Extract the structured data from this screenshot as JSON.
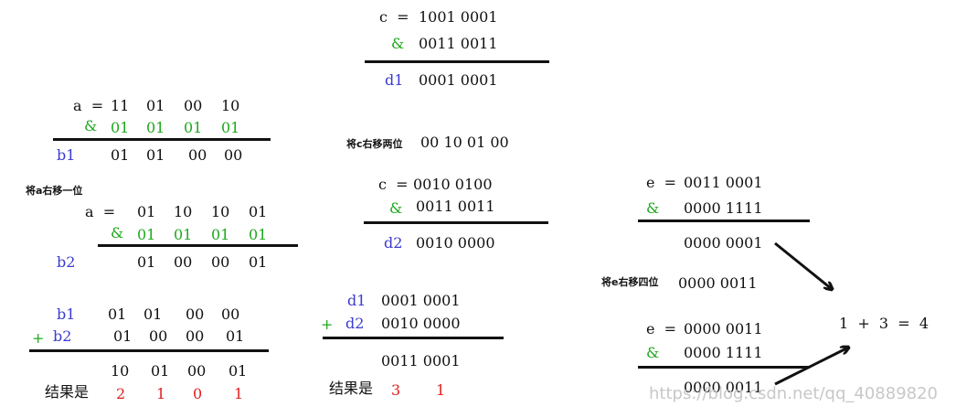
{
  "block_c1": {
    "c_label": "c  =",
    "c_value": "1001 0001",
    "op": "&",
    "mask": "0011 0011",
    "d1_label": "d1",
    "d1_value": "0001 0001"
  },
  "block_a1": {
    "a_label": "a  =",
    "a_bits": [
      "11",
      "01",
      "00",
      "10"
    ],
    "op": "&",
    "mask_bits": [
      "01",
      "01",
      "01",
      "01"
    ],
    "b1_label": "b1",
    "b1_bits": [
      "01",
      "01",
      "00",
      "00"
    ]
  },
  "note_shift_c": "将c右移两位",
  "shift_c_value": "00 10 01 00",
  "note_shift_a": "将a右移一位",
  "block_a2": {
    "a_label": "a  =",
    "a_bits": [
      "01",
      "10",
      "10",
      "01"
    ],
    "op": "&",
    "mask_bits": [
      "01",
      "01",
      "01",
      "01"
    ],
    "b2_label": "b2",
    "b2_bits": [
      "01",
      "00",
      "00",
      "01"
    ]
  },
  "block_c2": {
    "c_label": "c  =",
    "c_value": "0010 0100",
    "op": "&",
    "mask": "0011 0011",
    "d2_label": "d2",
    "d2_value": "0010 0000"
  },
  "block_e1": {
    "e_label": "e  =",
    "e_value": "0011 0001",
    "op": "&",
    "mask": "0000 1111",
    "result": "0000 0001"
  },
  "note_shift_e": "将e右移四位",
  "shift_e_value": "0000 0011",
  "block_e2": {
    "e_label": "e  =",
    "e_value": "0000 0011",
    "op": "&",
    "mask": "0000 1111",
    "result": "0000 0011"
  },
  "final_sum": "1  +  3  =  4",
  "block_sum_b": {
    "b1_label": "b1",
    "b1_bits": [
      "01",
      "01",
      "00",
      "00"
    ],
    "op": "+",
    "b2_label": "b2",
    "b2_bits": [
      "01",
      "00",
      "00",
      "01"
    ],
    "sum_bits": [
      "10",
      "01",
      "00",
      "01"
    ],
    "result_label": "结果是",
    "result_digits": [
      "2",
      "1",
      "0",
      "1"
    ]
  },
  "block_sum_d": {
    "d1_label": "d1",
    "d1_value": "0001 0001",
    "op": "+",
    "d2_label": "d2",
    "d2_value": "0010 0000",
    "sum_value": "0011 0001",
    "result_label": "结果是",
    "result_digits": [
      "3",
      "1"
    ]
  },
  "watermark": "https://blog.csdn.net/qq_40889820",
  "colors": {
    "label_blue": "#3a3ad0",
    "operator_green": "#1ea81e",
    "result_red": "#e02020",
    "text_black": "#111111"
  }
}
